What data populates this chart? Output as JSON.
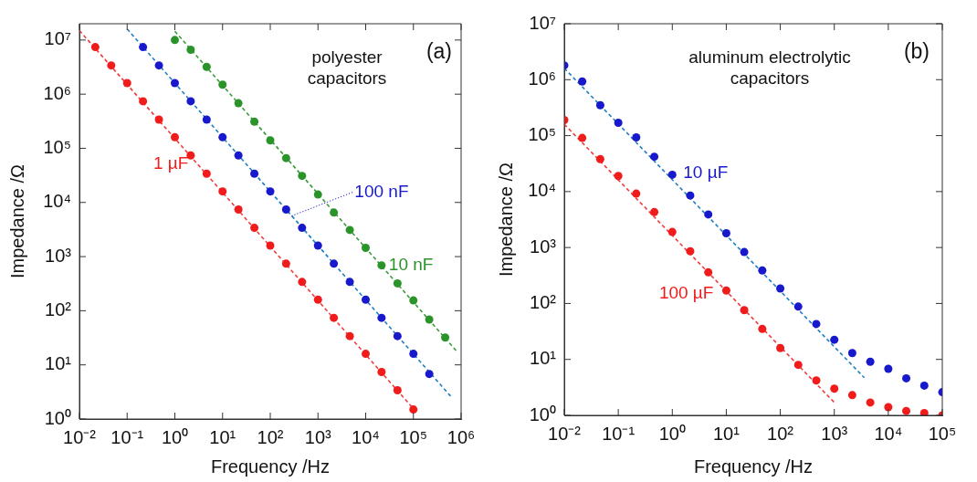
{
  "chart_data": [
    {
      "type": "scatter",
      "xlabel": "Frequency /Hz",
      "ylabel": "Impedance /Ω",
      "log": "xy",
      "marker": "circle",
      "xlim": [
        0.01,
        1000000
      ],
      "ylim": [
        1,
        20000000
      ],
      "xticks": [
        {
          "value": 0.01,
          "label": "10⁻²"
        },
        {
          "value": 0.1,
          "label": "10⁻¹"
        },
        {
          "value": 1,
          "label": "10⁰"
        },
        {
          "value": 10,
          "label": "10¹"
        },
        {
          "value": 100,
          "label": "10²"
        },
        {
          "value": 1000,
          "label": "10³"
        },
        {
          "value": 10000,
          "label": "10⁴"
        },
        {
          "value": 100000,
          "label": "10⁵"
        },
        {
          "value": 1000000,
          "label": "10⁶"
        }
      ],
      "yticks": [
        {
          "value": 1,
          "label": "10⁰"
        },
        {
          "value": 10,
          "label": "10¹"
        },
        {
          "value": 100,
          "label": "10²"
        },
        {
          "value": 1000,
          "label": "10³"
        },
        {
          "value": 10000,
          "label": "10⁴"
        },
        {
          "value": 100000,
          "label": "10⁵"
        },
        {
          "value": 1000000,
          "label": "10⁶"
        },
        {
          "value": 10000000,
          "label": "10⁷"
        }
      ],
      "annotations": [
        "(a)",
        "polyester capacitors"
      ],
      "series": [
        {
          "name": "1 µF",
          "color": "#f01c1c",
          "x": [
            0.0215,
            0.0464,
            0.1,
            0.215,
            0.464,
            1,
            2.15,
            4.64,
            10,
            21.5,
            46.4,
            100,
            215,
            464,
            1000,
            2150,
            4640,
            10000,
            21500,
            46400,
            100000
          ],
          "values": [
            7400000,
            3400000,
            1600000,
            740000,
            340000,
            160000,
            74000,
            34000,
            16000,
            7400,
            3400,
            1600,
            740,
            340,
            160,
            74,
            34,
            16,
            7.4,
            3.4,
            1.5
          ]
        },
        {
          "name": "100 nF",
          "color": "#1818cc",
          "x": [
            0.215,
            0.464,
            1,
            2.15,
            4.64,
            10,
            21.5,
            46.4,
            100,
            215,
            464,
            1000,
            2150,
            4640,
            10000,
            21500,
            46400,
            100000,
            215000
          ],
          "values": [
            7400000,
            3400000,
            1600000,
            740000,
            340000,
            160000,
            74000,
            34000,
            16000,
            7400,
            3400,
            1600,
            740,
            340,
            160,
            74,
            34,
            16,
            6.8
          ]
        },
        {
          "name": "10 nF",
          "color": "#2a932a",
          "x": [
            1,
            2.15,
            4.64,
            10,
            21.5,
            46.4,
            100,
            215,
            464,
            1000,
            2150,
            4640,
            10000,
            21500,
            46400,
            100000,
            215000,
            464000
          ],
          "values": [
            10000000,
            6600000,
            3200000,
            1500000,
            680000,
            310000,
            140000,
            66000,
            31000,
            14000,
            6500,
            3100,
            1450,
            690,
            320,
            155,
            69,
            32
          ]
        },
        {
          "type": "line",
          "marker": "none",
          "line_style": "dashed",
          "color": "#f03c3c",
          "x": [
            0.01,
            120000
          ],
          "values": [
            15000000,
            1.3
          ]
        },
        {
          "type": "line",
          "marker": "none",
          "line_style": "dashed",
          "color": "#1f7fc0",
          "x": [
            0.1,
            600000
          ],
          "values": [
            16000000,
            2.65
          ]
        },
        {
          "type": "line",
          "marker": "none",
          "line_style": "dashed",
          "color": "#3a9a3a",
          "x": [
            1,
            800000
          ],
          "values": [
            14500000,
            18
          ]
        }
      ]
    },
    {
      "type": "scatter",
      "xlabel": "Frequency /Hz",
      "ylabel": "Impedance /Ω",
      "log": "xy",
      "marker": "circle",
      "xlim": [
        0.01,
        100000
      ],
      "ylim": [
        1,
        10000000
      ],
      "xticks": [
        {
          "value": 0.01,
          "label": "10⁻²"
        },
        {
          "value": 0.1,
          "label": "10⁻¹"
        },
        {
          "value": 1,
          "label": "10⁰"
        },
        {
          "value": 10,
          "label": "10¹"
        },
        {
          "value": 100,
          "label": "10²"
        },
        {
          "value": 1000,
          "label": "10³"
        },
        {
          "value": 10000,
          "label": "10⁴"
        },
        {
          "value": 100000,
          "label": "10⁵"
        }
      ],
      "yticks": [
        {
          "value": 1,
          "label": "10⁰"
        },
        {
          "value": 10,
          "label": "10¹"
        },
        {
          "value": 100,
          "label": "10²"
        },
        {
          "value": 1000,
          "label": "10³"
        },
        {
          "value": 10000,
          "label": "10⁴"
        },
        {
          "value": 100000,
          "label": "10⁵"
        },
        {
          "value": 1000000,
          "label": "10⁶"
        },
        {
          "value": 10000000,
          "label": "10⁷"
        }
      ],
      "annotations": [
        "(b)",
        "aluminum electrolytic capacitors"
      ],
      "series": [
        {
          "name": "10 µF",
          "color": "#1818cc",
          "x": [
            0.01,
            0.0215,
            0.0464,
            0.1,
            0.215,
            0.464,
            1,
            2.15,
            4.64,
            10,
            21.5,
            46.4,
            100,
            215,
            464,
            1000,
            2150,
            4640,
            10000,
            21500,
            46400,
            100000
          ],
          "values": [
            1800000,
            930000,
            350000,
            170000,
            93000,
            42000,
            20000,
            8500,
            3900,
            1800,
            830,
            390,
            185,
            88,
            43,
            22.5,
            13,
            9.1,
            6.8,
            4.6,
            3.4,
            2.6
          ]
        },
        {
          "name": "100 µF",
          "color": "#f01c1c",
          "x": [
            0.01,
            0.0215,
            0.0464,
            0.1,
            0.215,
            0.464,
            1,
            2.15,
            4.64,
            10,
            21.5,
            46.4,
            100,
            215,
            464,
            1000,
            2150,
            4640,
            10000,
            21500,
            46400,
            100000
          ],
          "values": [
            190000,
            91000,
            38000,
            19000,
            9200,
            4300,
            1900,
            860,
            360,
            170,
            76,
            35,
            16,
            8.0,
            4.2,
            3.0,
            2.3,
            1.7,
            1.4,
            1.2,
            1.1,
            1.0
          ]
        },
        {
          "type": "line",
          "marker": "none",
          "line_style": "dashed",
          "color": "#1f7fc0",
          "x": [
            0.01,
            3600
          ],
          "values": [
            1600000,
            4.7
          ]
        },
        {
          "type": "line",
          "marker": "none",
          "line_style": "dashed",
          "color": "#f03c3c",
          "x": [
            0.01,
            1000
          ],
          "values": [
            160000,
            1.7
          ]
        }
      ]
    }
  ]
}
